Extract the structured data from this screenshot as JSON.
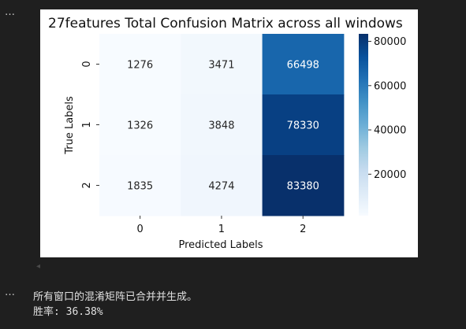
{
  "cell_prompt_top": "…",
  "cell_prompt_bottom": "…",
  "output": {
    "line1": "所有窗口的混淆矩阵已合并并生成。",
    "line2": "胜率: 36.38%"
  },
  "colors": {
    "background": "#1f1f1f",
    "figure_bg": "#ffffff"
  },
  "chart_data": {
    "type": "heatmap",
    "title": "27features Total Confusion Matrix across all windows",
    "xlabel": "Predicted Labels",
    "ylabel": "True Labels",
    "x_categories": [
      "0",
      "1",
      "2"
    ],
    "y_categories": [
      "0",
      "1",
      "2"
    ],
    "values": [
      [
        1276,
        3471,
        66498
      ],
      [
        1326,
        3848,
        78330
      ],
      [
        1835,
        4274,
        83380
      ]
    ],
    "colormap": "Blues",
    "colorbar": {
      "ticks": [
        20000,
        40000,
        60000,
        80000
      ],
      "tick_labels": [
        "20000",
        "40000",
        "60000",
        "80000"
      ],
      "range": [
        1276,
        83380
      ]
    }
  }
}
